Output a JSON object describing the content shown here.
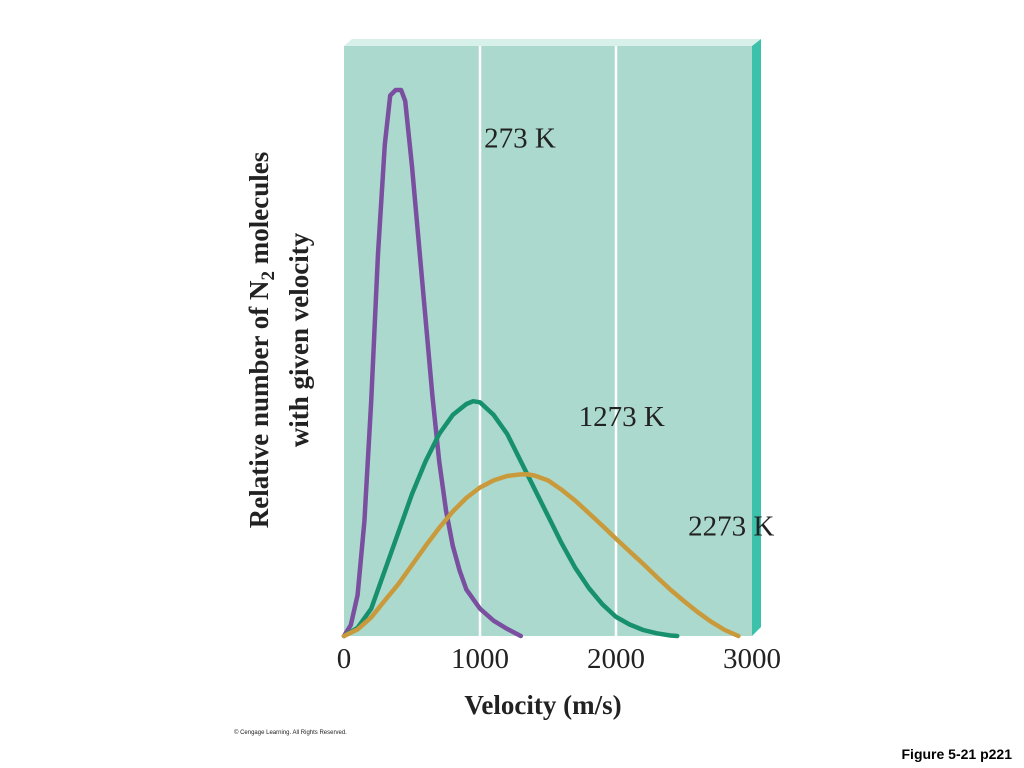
{
  "chart_data": {
    "type": "line",
    "xlabel": "Velocity (m/s)",
    "ylabel": {
      "line1_pre": "Relative number of N",
      "line1_sub": "2",
      "line1_post": " molecules",
      "line2": "with given velocity"
    },
    "xlim": [
      0,
      3000
    ],
    "ylim": [
      0,
      1.0
    ],
    "x_ticks": [
      0,
      1000,
      2000,
      3000
    ],
    "x_tick_labels": [
      "0",
      "1000",
      "2000",
      "3000"
    ],
    "grid": "vertical at 1000 and 2000",
    "colors": {
      "background": "#acd9cd",
      "panel_edge": "#3cc2ab",
      "panel_top": "#d8f0ea",
      "grid": "#ffffff"
    },
    "series": [
      {
        "name": "273 K",
        "color": "#7a4fa0",
        "label_pos": [
          1030,
          0.895
        ],
        "points": [
          [
            0,
            0
          ],
          [
            50,
            0.02
          ],
          [
            100,
            0.075
          ],
          [
            150,
            0.21
          ],
          [
            200,
            0.43
          ],
          [
            250,
            0.7
          ],
          [
            300,
            0.9
          ],
          [
            340,
            0.99
          ],
          [
            380,
            1.0
          ],
          [
            420,
            1.0
          ],
          [
            450,
            0.98
          ],
          [
            500,
            0.86
          ],
          [
            550,
            0.72
          ],
          [
            600,
            0.58
          ],
          [
            650,
            0.44
          ],
          [
            700,
            0.32
          ],
          [
            750,
            0.23
          ],
          [
            800,
            0.165
          ],
          [
            850,
            0.12
          ],
          [
            900,
            0.085
          ],
          [
            1000,
            0.05
          ],
          [
            1100,
            0.028
          ],
          [
            1200,
            0.013
          ],
          [
            1300,
            0.0
          ]
        ]
      },
      {
        "name": "1273 K",
        "color": "#17906e",
        "label_pos": [
          1725,
          0.385
        ],
        "points": [
          [
            0,
            0
          ],
          [
            100,
            0.015
          ],
          [
            200,
            0.05
          ],
          [
            300,
            0.12
          ],
          [
            400,
            0.19
          ],
          [
            500,
            0.26
          ],
          [
            600,
            0.32
          ],
          [
            700,
            0.37
          ],
          [
            800,
            0.405
          ],
          [
            900,
            0.425
          ],
          [
            950,
            0.43
          ],
          [
            1000,
            0.428
          ],
          [
            1100,
            0.405
          ],
          [
            1200,
            0.37
          ],
          [
            1300,
            0.32
          ],
          [
            1400,
            0.27
          ],
          [
            1500,
            0.22
          ],
          [
            1600,
            0.17
          ],
          [
            1700,
            0.125
          ],
          [
            1800,
            0.088
          ],
          [
            1900,
            0.058
          ],
          [
            2000,
            0.035
          ],
          [
            2100,
            0.021
          ],
          [
            2200,
            0.011
          ],
          [
            2300,
            0.005
          ],
          [
            2400,
            0.001
          ],
          [
            2450,
            0.0
          ]
        ]
      },
      {
        "name": "2273 K",
        "color": "#c99a3c",
        "label_pos": [
          2530,
          0.184
        ],
        "points": [
          [
            0,
            0
          ],
          [
            100,
            0.012
          ],
          [
            200,
            0.034
          ],
          [
            300,
            0.065
          ],
          [
            400,
            0.095
          ],
          [
            500,
            0.13
          ],
          [
            600,
            0.165
          ],
          [
            700,
            0.198
          ],
          [
            800,
            0.228
          ],
          [
            900,
            0.253
          ],
          [
            1000,
            0.272
          ],
          [
            1100,
            0.285
          ],
          [
            1200,
            0.293
          ],
          [
            1300,
            0.296
          ],
          [
            1350,
            0.296
          ],
          [
            1400,
            0.294
          ],
          [
            1500,
            0.285
          ],
          [
            1600,
            0.268
          ],
          [
            1700,
            0.248
          ],
          [
            1800,
            0.225
          ],
          [
            1900,
            0.202
          ],
          [
            2000,
            0.178
          ],
          [
            2100,
            0.155
          ],
          [
            2200,
            0.132
          ],
          [
            2300,
            0.108
          ],
          [
            2400,
            0.085
          ],
          [
            2500,
            0.064
          ],
          [
            2600,
            0.044
          ],
          [
            2700,
            0.026
          ],
          [
            2800,
            0.011
          ],
          [
            2900,
            0.0
          ]
        ]
      }
    ]
  },
  "footer": {
    "copyright": "© Cengage Learning. All Rights Reserved.",
    "figure_label": "Figure 5-21 p221"
  }
}
